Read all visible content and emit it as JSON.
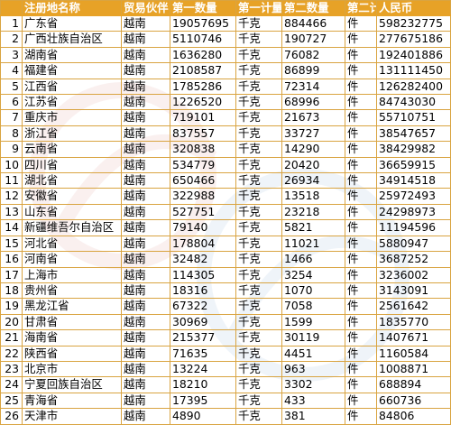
{
  "headers": [
    "",
    "注册地名称",
    "贸易伙伴",
    "第一数量",
    "第一计量",
    "第二数量",
    "第二计",
    "人民币"
  ],
  "rows": [
    [
      "1",
      "广东省",
      "越南",
      "19057695",
      "千克",
      "884466",
      "件",
      "598232775"
    ],
    [
      "2",
      "广西壮族自治区",
      "越南",
      "5110746",
      "千克",
      "190727",
      "件",
      "277675186"
    ],
    [
      "3",
      "湖南省",
      "越南",
      "1636280",
      "千克",
      "76082",
      "件",
      "192401886"
    ],
    [
      "4",
      "福建省",
      "越南",
      "2108587",
      "千克",
      "86899",
      "件",
      "131111450"
    ],
    [
      "5",
      "江西省",
      "越南",
      "1785286",
      "千克",
      "72314",
      "件",
      "126282400"
    ],
    [
      "6",
      "江苏省",
      "越南",
      "1226520",
      "千克",
      "68996",
      "件",
      "84743030"
    ],
    [
      "7",
      "重庆市",
      "越南",
      "719101",
      "千克",
      "21673",
      "件",
      "55710751"
    ],
    [
      "8",
      "浙江省",
      "越南",
      "837557",
      "千克",
      "33727",
      "件",
      "38547657"
    ],
    [
      "9",
      "云南省",
      "越南",
      "320838",
      "千克",
      "14290",
      "件",
      "38429982"
    ],
    [
      "10",
      "四川省",
      "越南",
      "534779",
      "千克",
      "20420",
      "件",
      "36659915"
    ],
    [
      "11",
      "湖北省",
      "越南",
      "650466",
      "千克",
      "26934",
      "件",
      "34914518"
    ],
    [
      "12",
      "安徽省",
      "越南",
      "322988",
      "千克",
      "13518",
      "件",
      "25972493"
    ],
    [
      "13",
      "山东省",
      "越南",
      "527751",
      "千克",
      "23218",
      "件",
      "24298973"
    ],
    [
      "14",
      "新疆维吾尔自治区",
      "越南",
      "79140",
      "千克",
      "5821",
      "件",
      "11194596"
    ],
    [
      "15",
      "河北省",
      "越南",
      "178804",
      "千克",
      "11021",
      "件",
      "5880947"
    ],
    [
      "16",
      "河南省",
      "越南",
      "32482",
      "千克",
      "1466",
      "件",
      "3687252"
    ],
    [
      "17",
      "上海市",
      "越南",
      "114305",
      "千克",
      "3254",
      "件",
      "3236002"
    ],
    [
      "18",
      "贵州省",
      "越南",
      "18316",
      "千克",
      "1070",
      "件",
      "3143091"
    ],
    [
      "19",
      "黑龙江省",
      "越南",
      "67322",
      "千克",
      "7058",
      "件",
      "2561642"
    ],
    [
      "20",
      "甘肃省",
      "越南",
      "30969",
      "千克",
      "1599",
      "件",
      "1835770"
    ],
    [
      "21",
      "海南省",
      "越南",
      "215377",
      "千克",
      "30119",
      "件",
      "1407671"
    ],
    [
      "22",
      "陕西省",
      "越南",
      "71635",
      "千克",
      "4451",
      "件",
      "1160584"
    ],
    [
      "23",
      "北京市",
      "越南",
      "13224",
      "千克",
      "963",
      "件",
      "1008871"
    ],
    [
      "24",
      "宁夏回族自治区",
      "越南",
      "18210",
      "千克",
      "3302",
      "件",
      "688894"
    ],
    [
      "25",
      "青海省",
      "越南",
      "17395",
      "千克",
      "433",
      "件",
      "660736"
    ],
    [
      "26",
      "天津市",
      "越南",
      "4890",
      "千克",
      "381",
      "件",
      "84806"
    ]
  ],
  "colors": {
    "header_bg": "#e7a227",
    "grid": "#d9a441"
  }
}
